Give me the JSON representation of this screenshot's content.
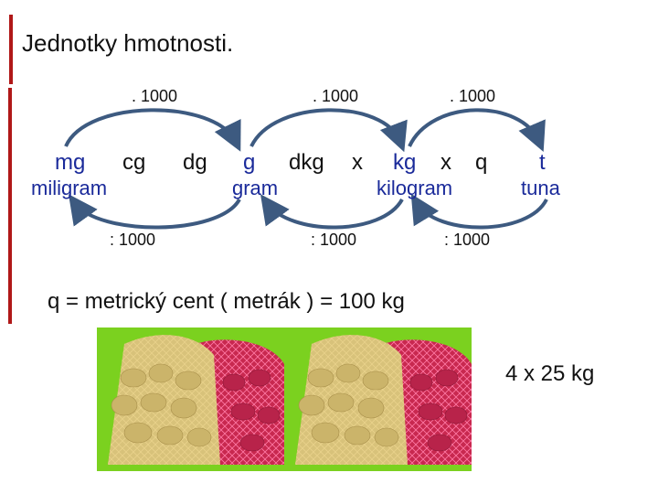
{
  "slide": {
    "title": "Jednotky hmotnosti.",
    "multiply_labels": [
      ". 1000",
      ". 1000",
      ". 1000"
    ],
    "divide_labels": [
      ": 1000",
      ": 1000",
      ": 1000"
    ],
    "units": {
      "mg": "mg",
      "cg": "cg",
      "dg": "dg",
      "g": "g",
      "dkg": "dkg",
      "x1": "x",
      "kg": "kg",
      "x2": "x",
      "q": "q",
      "t": "t"
    },
    "names": {
      "miligram": "miligram",
      "gram": "gram",
      "kilogram": "kilogram",
      "tuna": "tuna"
    },
    "note": "q = metrický cent ( metrák ) = 100 kg",
    "count": "4 x 25 kg",
    "colors": {
      "accent_bar": "#b01818",
      "unit_text": "#1a2a9a",
      "arrow": "#3d5a80",
      "photo_background": "#7bd11f"
    },
    "image": "potato-sacks-photo"
  }
}
